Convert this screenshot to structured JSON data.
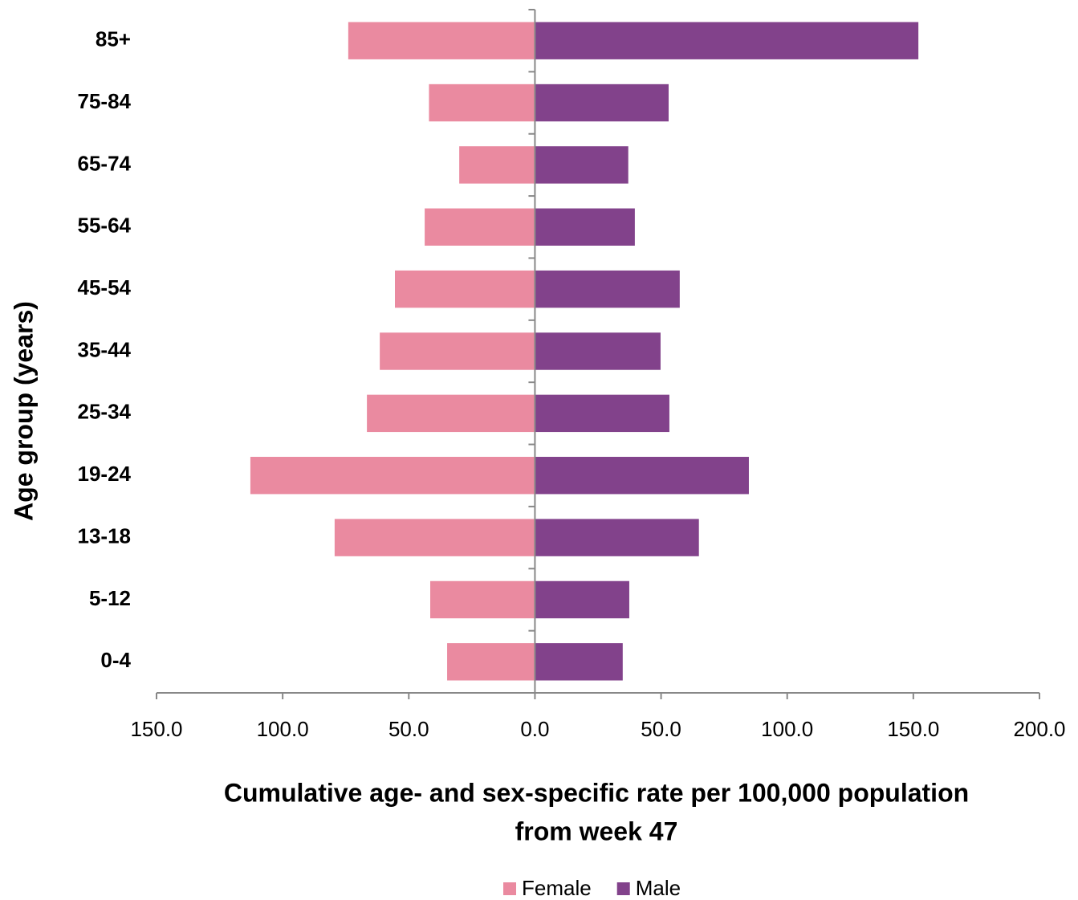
{
  "chart_data": {
    "type": "bar",
    "orientation": "horizontal",
    "xlabel": [
      "Cumulative age- and sex-specific rate per 100,000 population",
      "from week 47"
    ],
    "ylabel": "Age group (years)",
    "categories": [
      "0-4",
      "5-12",
      "13-18",
      "19-24",
      "25-34",
      "35-44",
      "45-54",
      "55-64",
      "65-74",
      "75-84",
      "85+"
    ],
    "series": [
      {
        "name": "Female",
        "color": "#ea8aa0",
        "values": [
          -34.8,
          -41.5,
          -79.4,
          -112.8,
          -66.6,
          -61.5,
          -55.5,
          -43.7,
          -30,
          -42,
          -74
        ]
      },
      {
        "name": "Male",
        "color": "#82428b",
        "values": [
          34.8,
          37.4,
          65,
          84.8,
          53.3,
          49.8,
          57.4,
          39.6,
          37,
          53,
          152
        ]
      }
    ],
    "xlim": [
      -150,
      200
    ],
    "xticks": [
      {
        "value": -150,
        "label": "150.0"
      },
      {
        "value": -100,
        "label": "100.0"
      },
      {
        "value": -50,
        "label": "50.0"
      },
      {
        "value": 0,
        "label": "0.0"
      },
      {
        "value": 50,
        "label": "50.0"
      },
      {
        "value": 100,
        "label": "100.0"
      },
      {
        "value": 150,
        "label": "150.0"
      },
      {
        "value": 200,
        "label": "200.0"
      }
    ],
    "legend": "bottom"
  }
}
